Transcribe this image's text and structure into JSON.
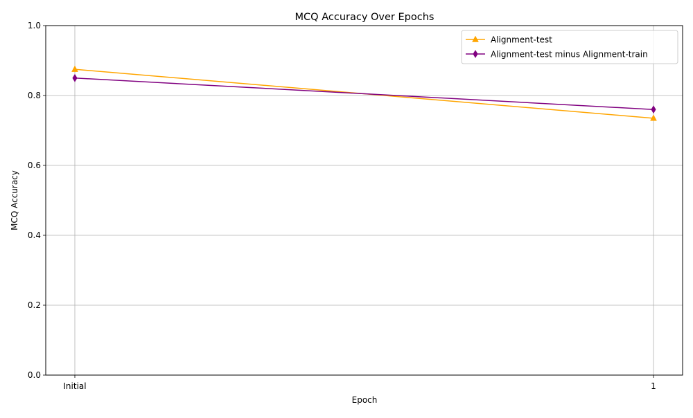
{
  "chart_data": {
    "type": "line",
    "title": "MCQ Accuracy Over Epochs",
    "xlabel": "Epoch",
    "ylabel": "MCQ Accuracy",
    "categories": [
      "Initial",
      "1"
    ],
    "ylim": [
      0,
      1
    ],
    "yticks": [
      "0.0",
      "0.2",
      "0.4",
      "0.6",
      "0.8",
      "1.0"
    ],
    "ytick_values": [
      0,
      0.2,
      0.4,
      0.6,
      0.8,
      1.0
    ],
    "grid": true,
    "legend_position": "top-right",
    "series": [
      {
        "name": "Alignment-test",
        "values": [
          0.875,
          0.735
        ],
        "color": "#ffa500",
        "marker": "triangle-up"
      },
      {
        "name": "Alignment-test minus Alignment-train",
        "values": [
          0.85,
          0.76
        ],
        "color": "#800080",
        "marker": "thin-diamond"
      }
    ]
  }
}
